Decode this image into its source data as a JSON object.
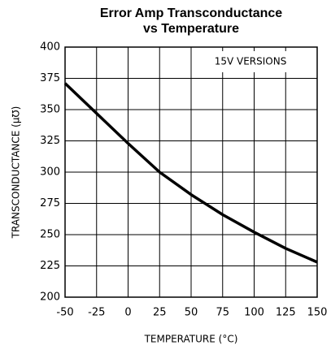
{
  "chart_data": {
    "type": "line",
    "title": "Error Amp Transconductance",
    "subtitle": "vs Temperature",
    "annotation": "15V VERSIONS",
    "xlabel": "TEMPERATURE (°C)",
    "ylabel": "TRANSCONDUCTANCE (μ℧)",
    "x": [
      -50,
      -25,
      0,
      25,
      50,
      75,
      100,
      125,
      150
    ],
    "series": [
      {
        "name": "15V",
        "color": "#000000",
        "values": [
          371,
          347,
          323,
          300,
          282,
          266,
          252,
          239,
          228
        ]
      }
    ],
    "xlim": [
      -50,
      150
    ],
    "xticks": [
      -50,
      -25,
      0,
      25,
      50,
      75,
      100,
      125,
      150
    ],
    "ylim": [
      200,
      400
    ],
    "yticks": [
      200,
      225,
      250,
      275,
      300,
      325,
      350,
      375,
      400
    ],
    "grid": true
  }
}
